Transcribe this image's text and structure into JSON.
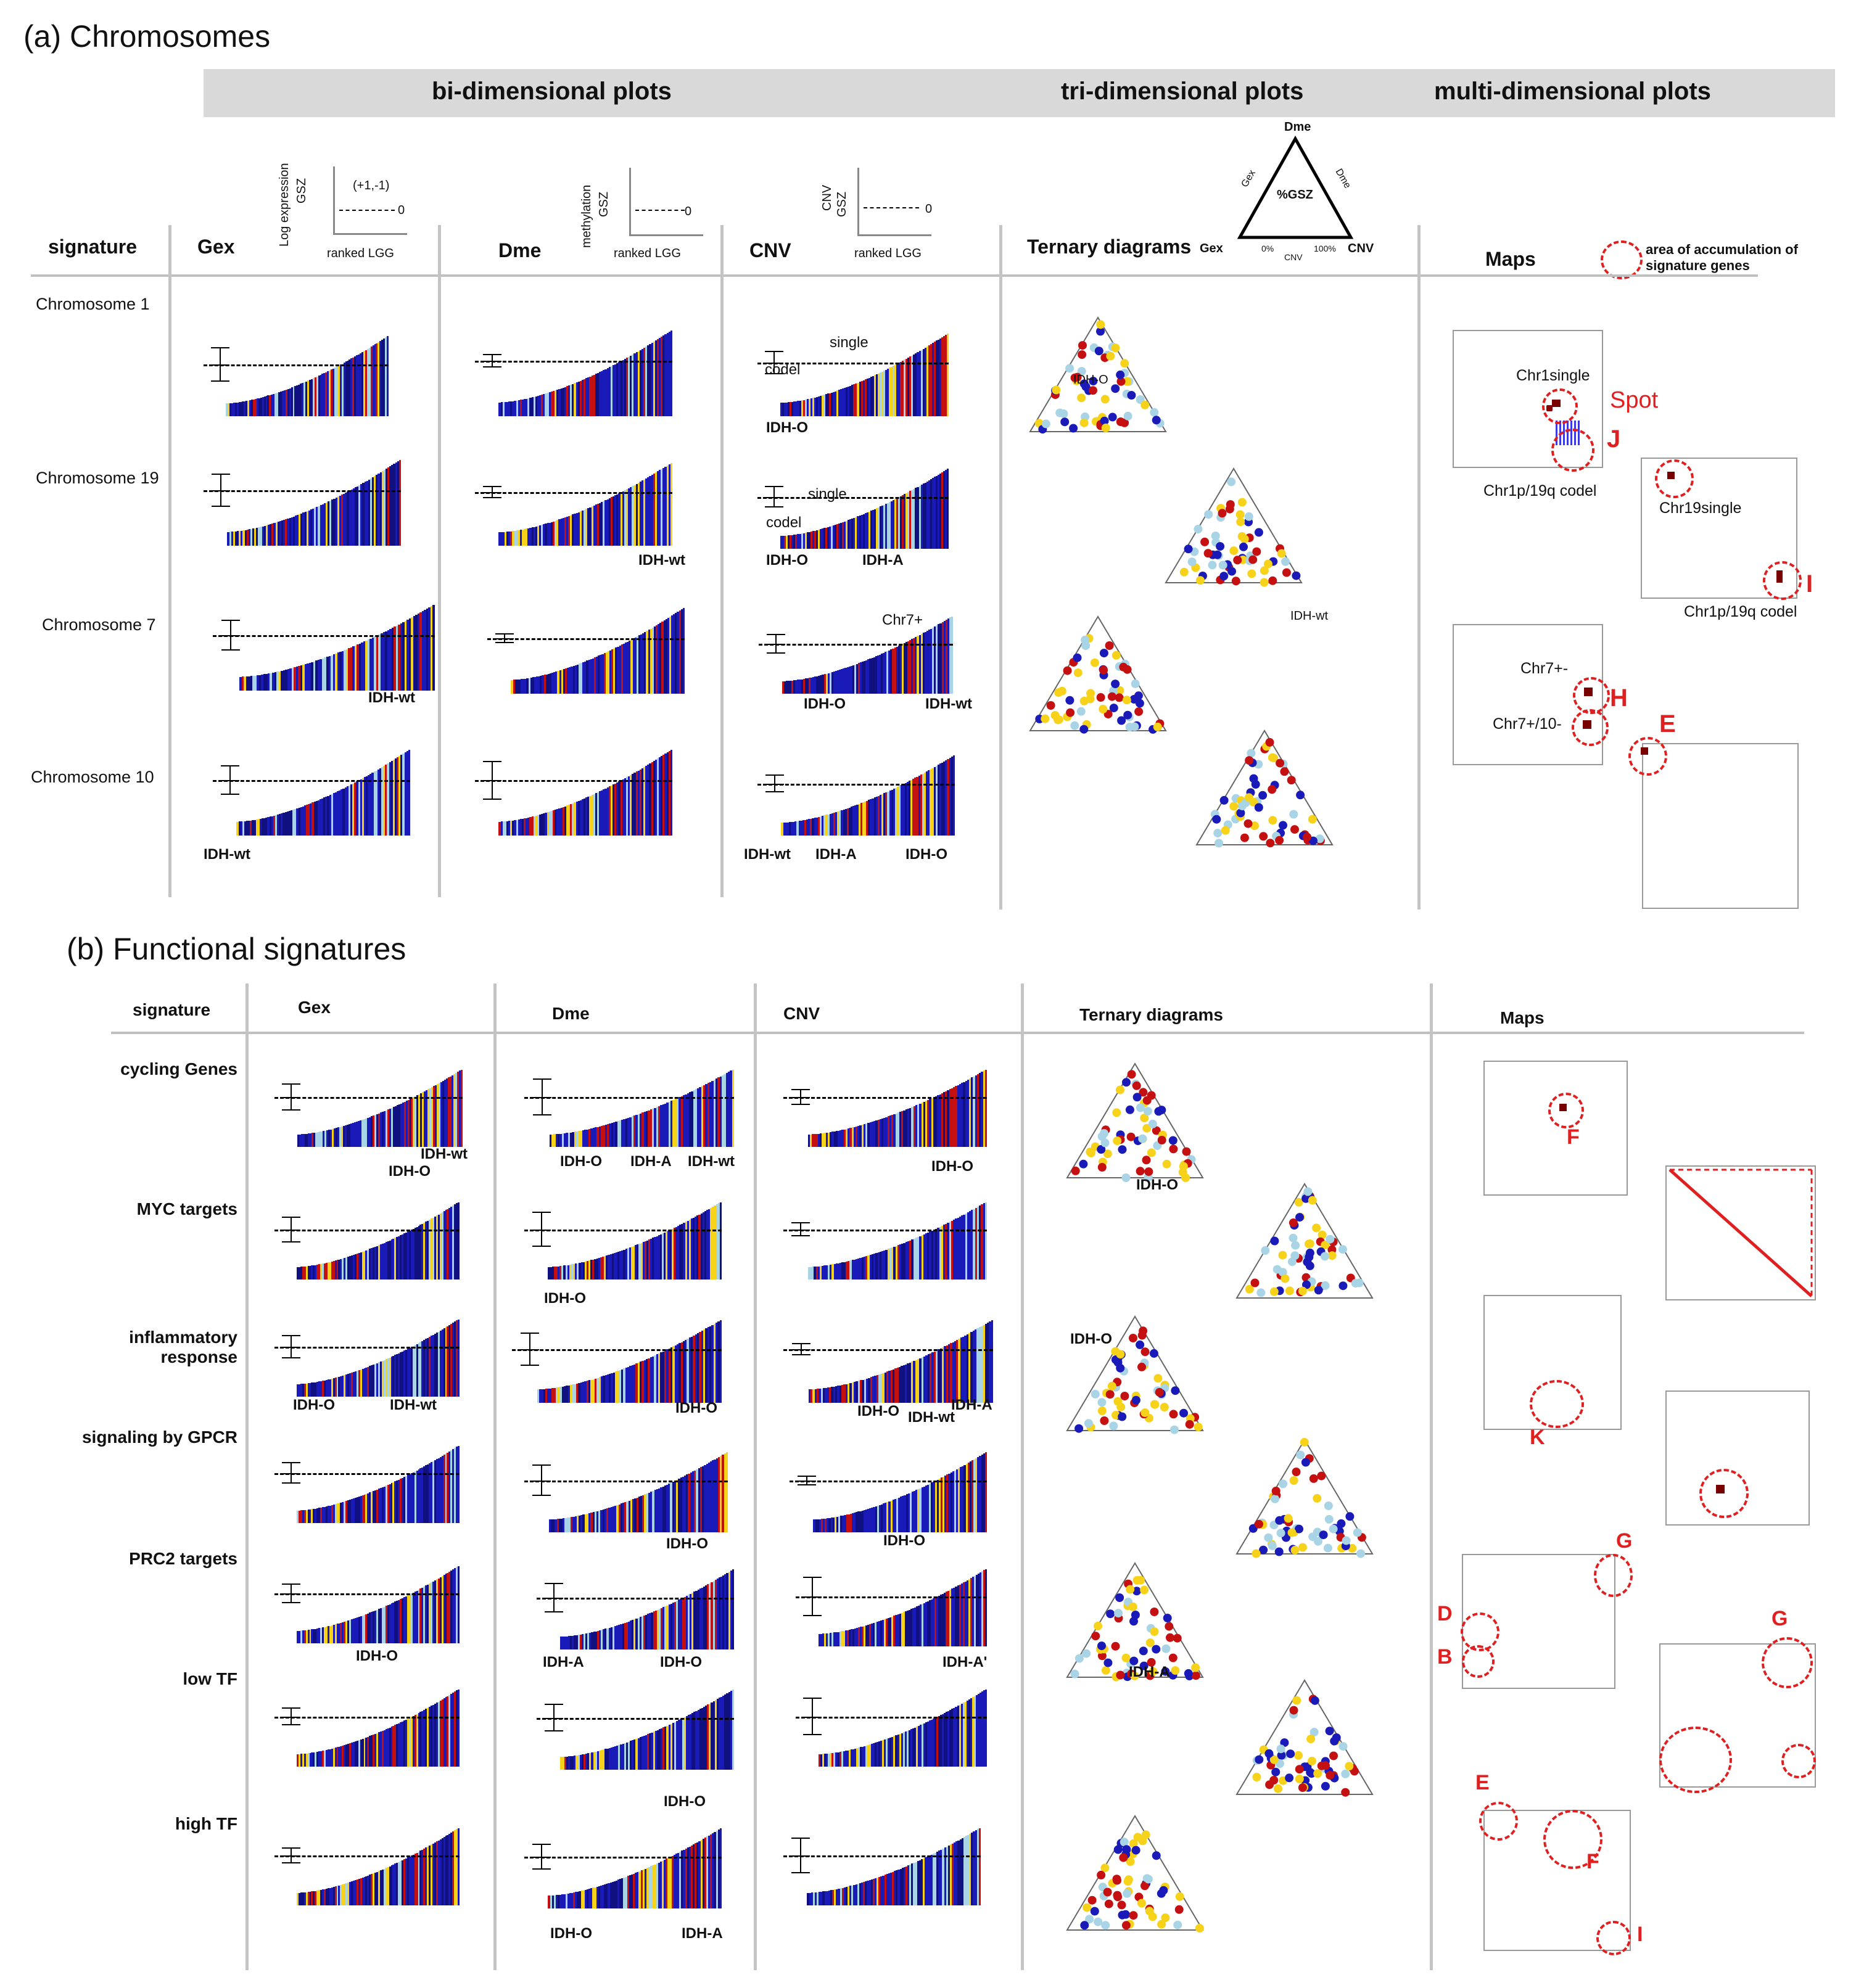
{
  "section_a": {
    "title": "(a) Chromosomes",
    "banner": {
      "bi": "bi-dimensional plots",
      "tri": "tri-dimensional plots",
      "multi": "multi-dimensional plots"
    },
    "columns": {
      "signature": "signature",
      "gex": "Gex",
      "dme": "Dme",
      "cnv": "CNV",
      "ternary": "Ternary diagrams",
      "maps": "Maps"
    },
    "axis_legends": {
      "gex_y": "Log expression",
      "gsz": "GSZ",
      "gex_marker": "(+1,-1)",
      "zero": "0",
      "ranked": "ranked LGG",
      "dme_y": "methylation",
      "cnv_y": "CNV"
    },
    "ternary_legend": {
      "top": "Dme",
      "left": "Gex",
      "right": "CNV",
      "center": "%GSZ",
      "left_side": "Gex",
      "right_side": "Dme",
      "bottom": "CNV",
      "p0": "0%",
      "p100": "100%"
    },
    "map_legend": "area of accumulation of signature genes",
    "rows": [
      "Chromosome 1",
      "Chromosome 19",
      "Chromosome 7",
      "Chromosome 10"
    ],
    "labels": {
      "single": "single",
      "codel": "codel",
      "idh_o": "IDH-O",
      "idh_wt": "IDH-wt",
      "idh_a": "IDH-A",
      "chr7plus": "Chr7+",
      "tern_idh_o": "IDH-O",
      "tern_idh_wt": "IDH-wt",
      "spot": "Spot",
      "chr1single": "Chr1single",
      "chr1p19q": "Chr1p/19q codel",
      "chr19single": "Chr19single",
      "chr1p19q_2": "Chr1p/19q codel",
      "chr7pm": "Chr7+-",
      "chr7p10m": "Chr7+/10-",
      "J": "J",
      "I": "I",
      "H": "H",
      "E": "E"
    }
  },
  "section_b": {
    "title": "(b) Functional signatures",
    "columns": {
      "signature": "signature",
      "gex": "Gex",
      "dme": "Dme",
      "cnv": "CNV",
      "ternary": "Ternary diagrams",
      "maps": "Maps"
    },
    "rows": [
      "cycling Genes",
      "MYC targets",
      "inflammatory response",
      "signaling by GPCR",
      "PRC2 targets",
      "low TF",
      "high TF"
    ],
    "labels": {
      "r1_gex_a": "IDH-wt",
      "r1_gex_b": "IDH-O",
      "r1_dme_a": "IDH-O",
      "r1_dme_b": "IDH-A",
      "r1_dme_c": "IDH-wt",
      "r1_cnv": "IDH-O",
      "r2_dme": "IDH-O",
      "r3_gex_a": "IDH-O",
      "r3_gex_b": "IDH-wt",
      "r3_dme": "IDH-O",
      "r3_cnv_a": "IDH-O",
      "r3_cnv_b": "IDH-wt",
      "r3_cnv_c": "IDH-A",
      "r4_dme": "IDH-O",
      "r4_cnv": "IDH-O",
      "r5_gex": "IDH-O",
      "r5_dme_a": "IDH-A",
      "r5_dme_b": "IDH-O",
      "r5_cnv": "IDH-A'",
      "r6_dme": "IDH-O",
      "r7_dme_a": "IDH-O",
      "r7_dme_b": "IDH-A",
      "t1": "IDH-O",
      "t3": "IDH-O",
      "t5": "IDH-A",
      "F": "F",
      "K": "K",
      "G": "G",
      "D": "D",
      "B": "B",
      "G2": "G",
      "E": "E",
      "F2": "F",
      "I": "I"
    }
  },
  "colors": {
    "blue": "#1a1ab8",
    "navy": "#101080",
    "red": "#c41010",
    "lightblue": "#a8d4e6",
    "yellow": "#f7d21a",
    "ring": "#e02020"
  }
}
